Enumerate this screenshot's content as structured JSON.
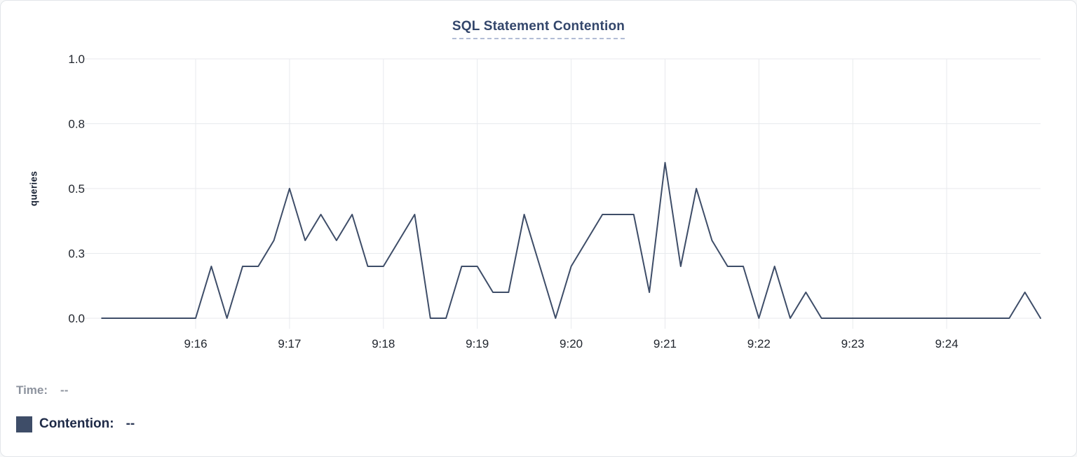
{
  "header": {
    "title": "SQL Statement Contention"
  },
  "legend": {
    "time_label": "Time:",
    "time_value": "--",
    "series_label": "Contention:",
    "series_value": "--"
  },
  "colors": {
    "line": "#3E4D68",
    "legend_swatch": "#3E4D68",
    "grid": "#E8EAEE",
    "title": "#33466B",
    "title_underline": "#B3BDD6"
  },
  "chart_data": {
    "type": "line",
    "title": "SQL Statement Contention",
    "xlabel": "",
    "ylabel": "queries",
    "ylim": [
      0,
      1
    ],
    "grid": true,
    "legend_position": "bottom-left",
    "yticks": [
      {
        "value": 0,
        "label": "0.0"
      },
      {
        "value": 0.25,
        "label": "0.3"
      },
      {
        "value": 0.5,
        "label": "0.5"
      },
      {
        "value": 0.75,
        "label": "0.8"
      },
      {
        "value": 1.0,
        "label": "1.0"
      }
    ],
    "x_domain": [
      "9:14:55",
      "9:25:00"
    ],
    "xticks": [
      "9:16",
      "9:17",
      "9:18",
      "9:19",
      "9:20",
      "9:21",
      "9:22",
      "9:23",
      "9:24"
    ],
    "series": [
      {
        "name": "Contention",
        "color": "#3E4D68",
        "x": [
          "9:15:00",
          "9:15:10",
          "9:15:20",
          "9:15:30",
          "9:15:40",
          "9:15:50",
          "9:16:00",
          "9:16:10",
          "9:16:20",
          "9:16:30",
          "9:16:40",
          "9:16:50",
          "9:17:00",
          "9:17:10",
          "9:17:20",
          "9:17:30",
          "9:17:40",
          "9:17:50",
          "9:18:00",
          "9:18:10",
          "9:18:20",
          "9:18:30",
          "9:18:40",
          "9:18:50",
          "9:19:00",
          "9:19:10",
          "9:19:20",
          "9:19:30",
          "9:19:40",
          "9:19:50",
          "9:20:00",
          "9:20:10",
          "9:20:20",
          "9:20:30",
          "9:20:40",
          "9:20:50",
          "9:21:00",
          "9:21:10",
          "9:21:20",
          "9:21:30",
          "9:21:40",
          "9:21:50",
          "9:22:00",
          "9:22:10",
          "9:22:20",
          "9:22:30",
          "9:22:40",
          "9:22:50",
          "9:23:00",
          "9:23:10",
          "9:23:20",
          "9:23:30",
          "9:23:40",
          "9:23:50",
          "9:24:00",
          "9:24:10",
          "9:24:20",
          "9:24:30",
          "9:24:40",
          "9:24:50",
          "9:25:00"
        ],
        "values": [
          0,
          0,
          0,
          0,
          0,
          0,
          0,
          0.2,
          0,
          0.2,
          0.2,
          0.3,
          0.5,
          0.3,
          0.4,
          0.3,
          0.4,
          0.2,
          0.2,
          0.3,
          0.4,
          0,
          0,
          0.2,
          0.2,
          0.1,
          0.1,
          0.4,
          0.2,
          0,
          0.2,
          0.3,
          0.4,
          0.4,
          0.4,
          0.1,
          0.6,
          0.2,
          0.5,
          0.3,
          0.2,
          0.2,
          0,
          0.2,
          0,
          0.1,
          0,
          0,
          0,
          0,
          0,
          0,
          0,
          0,
          0,
          0,
          0,
          0,
          0,
          0.1,
          0
        ]
      }
    ]
  }
}
